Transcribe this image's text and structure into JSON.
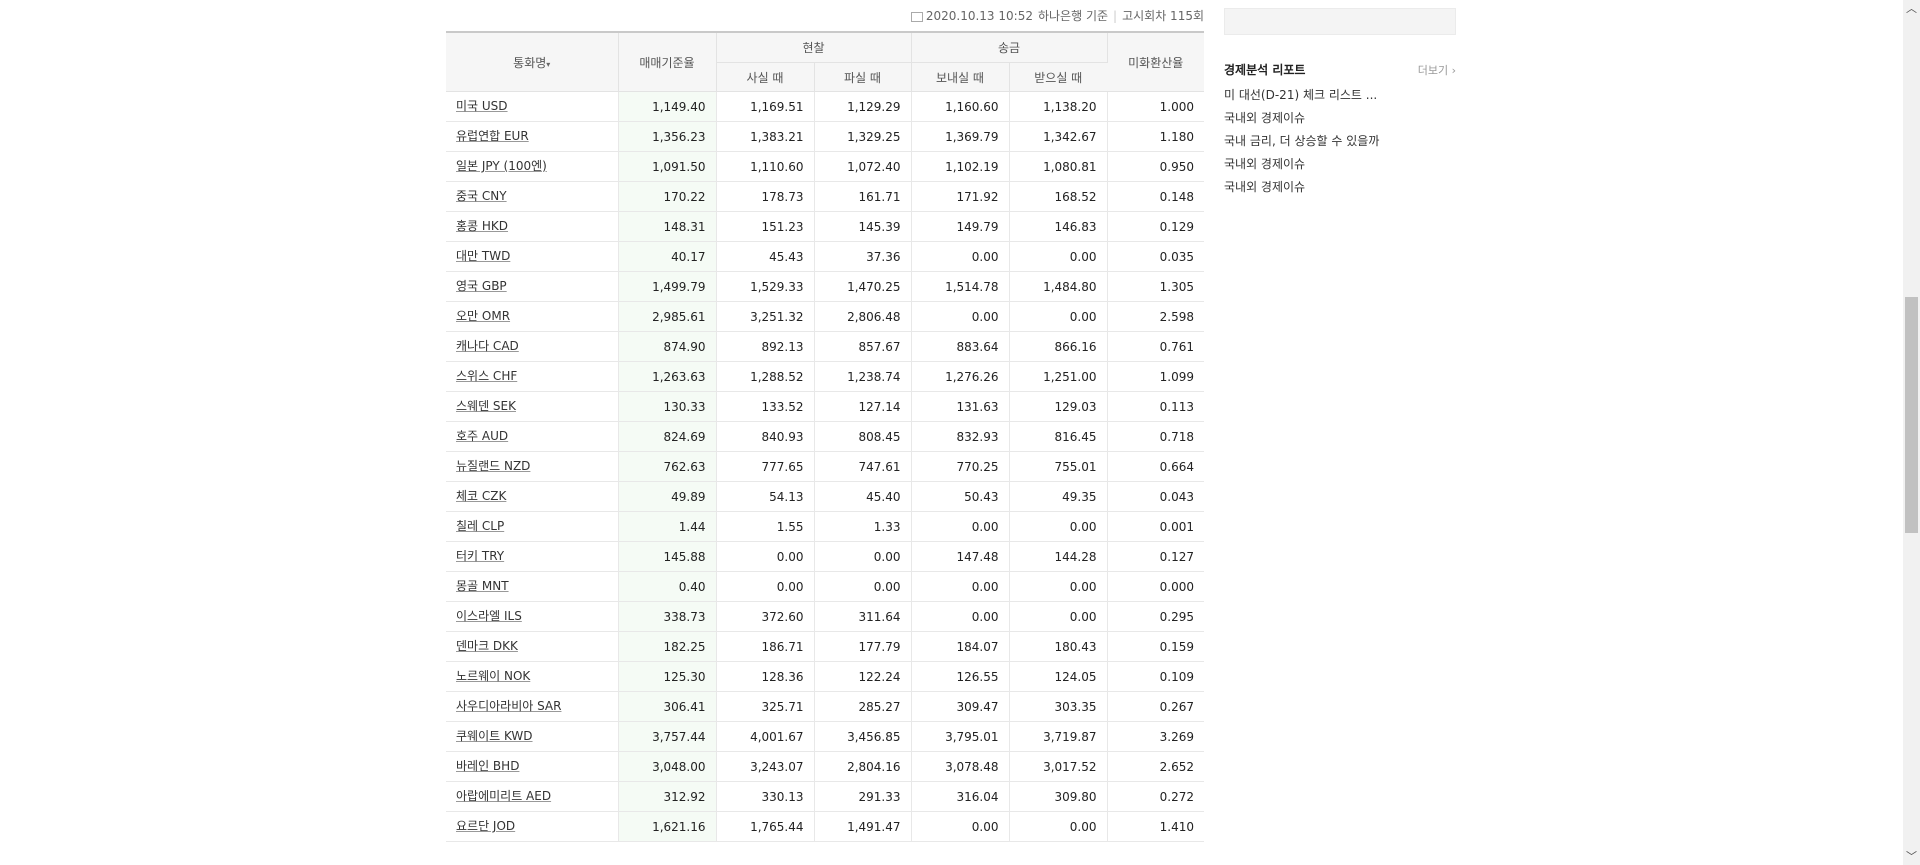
{
  "info": {
    "datetime": "2020.10.13 10:52",
    "bank": "하나은행 기준",
    "notice": "고시회차 115회"
  },
  "table": {
    "headers": {
      "currency": "통화명",
      "sort_arrow": "▾",
      "base_rate": "매매기준율",
      "cash": "현찰",
      "remit": "송금",
      "usd_ratio": "미화환산율",
      "cash_buy": "사실 때",
      "cash_sell": "파실 때",
      "send": "보내실 때",
      "receive": "받으실 때"
    },
    "rows": [
      {
        "name": "미국 USD",
        "base": "1,149.40",
        "cash_buy": "1,169.51",
        "cash_sell": "1,129.29",
        "send": "1,160.60",
        "receive": "1,138.20",
        "ratio": "1.000"
      },
      {
        "name": "유럽연합 EUR",
        "base": "1,356.23",
        "cash_buy": "1,383.21",
        "cash_sell": "1,329.25",
        "send": "1,369.79",
        "receive": "1,342.67",
        "ratio": "1.180"
      },
      {
        "name": "일본 JPY (100엔)",
        "base": "1,091.50",
        "cash_buy": "1,110.60",
        "cash_sell": "1,072.40",
        "send": "1,102.19",
        "receive": "1,080.81",
        "ratio": "0.950"
      },
      {
        "name": "중국 CNY",
        "base": "170.22",
        "cash_buy": "178.73",
        "cash_sell": "161.71",
        "send": "171.92",
        "receive": "168.52",
        "ratio": "0.148"
      },
      {
        "name": "홍콩 HKD",
        "base": "148.31",
        "cash_buy": "151.23",
        "cash_sell": "145.39",
        "send": "149.79",
        "receive": "146.83",
        "ratio": "0.129"
      },
      {
        "name": "대만 TWD",
        "base": "40.17",
        "cash_buy": "45.43",
        "cash_sell": "37.36",
        "send": "0.00",
        "receive": "0.00",
        "ratio": "0.035"
      },
      {
        "name": "영국 GBP",
        "base": "1,499.79",
        "cash_buy": "1,529.33",
        "cash_sell": "1,470.25",
        "send": "1,514.78",
        "receive": "1,484.80",
        "ratio": "1.305"
      },
      {
        "name": "오만 OMR",
        "base": "2,985.61",
        "cash_buy": "3,251.32",
        "cash_sell": "2,806.48",
        "send": "0.00",
        "receive": "0.00",
        "ratio": "2.598"
      },
      {
        "name": "캐나다 CAD",
        "base": "874.90",
        "cash_buy": "892.13",
        "cash_sell": "857.67",
        "send": "883.64",
        "receive": "866.16",
        "ratio": "0.761"
      },
      {
        "name": "스위스 CHF",
        "base": "1,263.63",
        "cash_buy": "1,288.52",
        "cash_sell": "1,238.74",
        "send": "1,276.26",
        "receive": "1,251.00",
        "ratio": "1.099"
      },
      {
        "name": "스웨덴 SEK",
        "base": "130.33",
        "cash_buy": "133.52",
        "cash_sell": "127.14",
        "send": "131.63",
        "receive": "129.03",
        "ratio": "0.113"
      },
      {
        "name": "호주 AUD",
        "base": "824.69",
        "cash_buy": "840.93",
        "cash_sell": "808.45",
        "send": "832.93",
        "receive": "816.45",
        "ratio": "0.718"
      },
      {
        "name": "뉴질랜드 NZD",
        "base": "762.63",
        "cash_buy": "777.65",
        "cash_sell": "747.61",
        "send": "770.25",
        "receive": "755.01",
        "ratio": "0.664"
      },
      {
        "name": "체코 CZK",
        "base": "49.89",
        "cash_buy": "54.13",
        "cash_sell": "45.40",
        "send": "50.43",
        "receive": "49.35",
        "ratio": "0.043"
      },
      {
        "name": "칠레 CLP",
        "base": "1.44",
        "cash_buy": "1.55",
        "cash_sell": "1.33",
        "send": "0.00",
        "receive": "0.00",
        "ratio": "0.001"
      },
      {
        "name": "터키 TRY",
        "base": "145.88",
        "cash_buy": "0.00",
        "cash_sell": "0.00",
        "send": "147.48",
        "receive": "144.28",
        "ratio": "0.127"
      },
      {
        "name": "몽골 MNT",
        "base": "0.40",
        "cash_buy": "0.00",
        "cash_sell": "0.00",
        "send": "0.00",
        "receive": "0.00",
        "ratio": "0.000"
      },
      {
        "name": "이스라엘 ILS",
        "base": "338.73",
        "cash_buy": "372.60",
        "cash_sell": "311.64",
        "send": "0.00",
        "receive": "0.00",
        "ratio": "0.295"
      },
      {
        "name": "덴마크 DKK",
        "base": "182.25",
        "cash_buy": "186.71",
        "cash_sell": "177.79",
        "send": "184.07",
        "receive": "180.43",
        "ratio": "0.159"
      },
      {
        "name": "노르웨이 NOK",
        "base": "125.30",
        "cash_buy": "128.36",
        "cash_sell": "122.24",
        "send": "126.55",
        "receive": "124.05",
        "ratio": "0.109"
      },
      {
        "name": "사우디아라비아 SAR",
        "base": "306.41",
        "cash_buy": "325.71",
        "cash_sell": "285.27",
        "send": "309.47",
        "receive": "303.35",
        "ratio": "0.267"
      },
      {
        "name": "쿠웨이트 KWD",
        "base": "3,757.44",
        "cash_buy": "4,001.67",
        "cash_sell": "3,456.85",
        "send": "3,795.01",
        "receive": "3,719.87",
        "ratio": "3.269"
      },
      {
        "name": "바레인 BHD",
        "base": "3,048.00",
        "cash_buy": "3,243.07",
        "cash_sell": "2,804.16",
        "send": "3,078.48",
        "receive": "3,017.52",
        "ratio": "2.652"
      },
      {
        "name": "아랍에미리트 AED",
        "base": "312.92",
        "cash_buy": "330.13",
        "cash_sell": "291.33",
        "send": "316.04",
        "receive": "309.80",
        "ratio": "0.272"
      },
      {
        "name": "요르단 JOD",
        "base": "1,621.16",
        "cash_buy": "1,765.44",
        "cash_sell": "1,491.47",
        "send": "0.00",
        "receive": "0.00",
        "ratio": "1.410"
      }
    ]
  },
  "sidebar": {
    "report_title": "경제분석 리포트",
    "more_label": "더보기 ›",
    "reports": [
      "미 대선(D-21) 체크 리스트 ...",
      "국내외 경제이슈",
      "국내 금리, 더 상승할 수 있을까",
      "국내외 경제이슈",
      "국내외 경제이슈"
    ]
  },
  "scrollbar": {
    "up_icon": "chevron-up-icon",
    "down_icon": "chevron-down-icon",
    "position": 0.47
  }
}
